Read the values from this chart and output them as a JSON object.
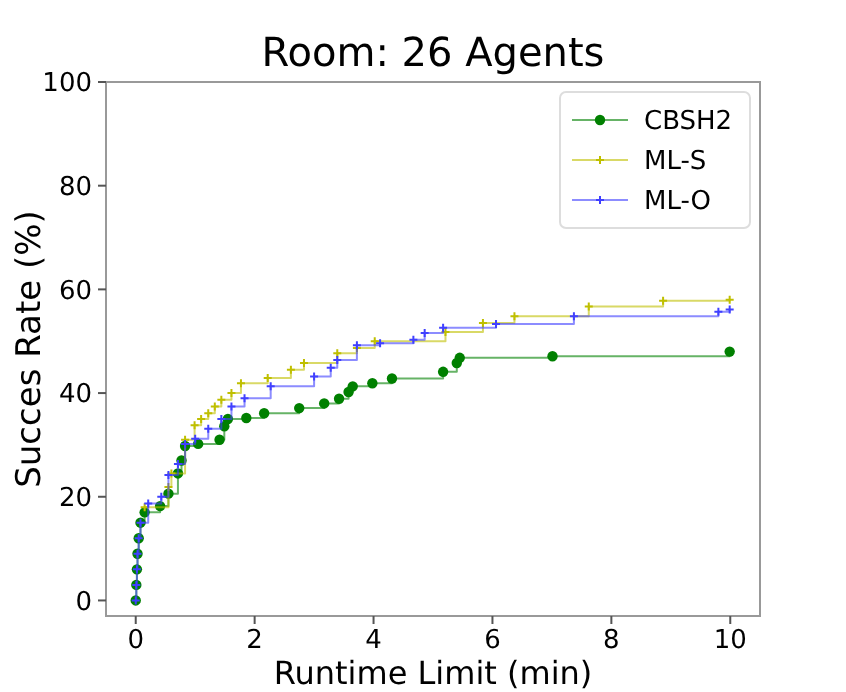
{
  "chart_data": {
    "type": "step",
    "title": "Room: 26 Agents",
    "xlabel": "Runtime Limit (min)",
    "ylabel": "Succes Rate (%)",
    "xlim": [
      -0.5,
      10.5
    ],
    "xticks": [
      0,
      2,
      4,
      6,
      8,
      10
    ],
    "ylim": [
      -3,
      100
    ],
    "yticks": [
      0,
      20,
      40,
      60,
      80,
      100
    ],
    "grid": false,
    "legend": "top right",
    "series": [
      {
        "name": "CBSH2",
        "color": "#008000",
        "marker": "circle",
        "x": [
          0,
          0.01,
          0.02,
          0.03,
          0.05,
          0.08,
          0.15,
          0.41,
          0.55,
          0.71,
          0.77,
          0.83,
          1.05,
          1.41,
          1.49,
          1.55,
          1.86,
          2.16,
          2.75,
          3.17,
          3.42,
          3.58,
          3.65,
          3.98,
          4.31,
          5.17,
          5.4,
          5.45,
          7.01,
          9.99
        ],
        "values": [
          0,
          3,
          6,
          9,
          12,
          15,
          17,
          18.2,
          20.6,
          24.5,
          27,
          29.8,
          30.2,
          31,
          33.6,
          35,
          35.2,
          36.1,
          37.1,
          38,
          38.9,
          40.2,
          41.3,
          41.9,
          42.8,
          44.1,
          45.8,
          46.8,
          47.1,
          48
        ]
      },
      {
        "name": "ML-S",
        "color": "#bfbf00",
        "marker": "plus",
        "x": [
          0.15,
          0.55,
          0.6,
          0.83,
          0.99,
          1.1,
          1.22,
          1.33,
          1.44,
          1.61,
          1.77,
          2.22,
          2.61,
          2.83,
          3.39,
          3.72,
          4.02,
          5.21,
          5.84,
          6.37,
          7.62,
          8.87,
          9.99
        ],
        "values": [
          18,
          21.9,
          24.5,
          31,
          33.8,
          35,
          36.1,
          37.4,
          38.7,
          40,
          41.9,
          42.9,
          44.5,
          45.8,
          47.7,
          48.7,
          50,
          51.8,
          53.5,
          54.8,
          56.7,
          57.8,
          58
        ]
      },
      {
        "name": "ML-O",
        "color": "#4040ff",
        "marker": "plus",
        "x": [
          0,
          0.01,
          0.02,
          0.03,
          0.05,
          0.08,
          0.21,
          0.43,
          0.55,
          0.71,
          0.83,
          1.0,
          1.22,
          1.44,
          1.61,
          1.83,
          2.27,
          3.0,
          3.28,
          3.39,
          3.72,
          4.11,
          4.67,
          4.86,
          5.17,
          6.06,
          7.37,
          9.8,
          9.99
        ],
        "values": [
          0,
          3,
          6,
          9,
          12,
          15,
          18.7,
          20,
          24.2,
          26.3,
          30.2,
          31.2,
          33.1,
          35,
          37.4,
          39,
          41.3,
          43.2,
          44.9,
          46.4,
          49.2,
          49.6,
          50.3,
          51.6,
          52.6,
          53.3,
          54.8,
          55.7,
          56.1
        ]
      }
    ]
  }
}
